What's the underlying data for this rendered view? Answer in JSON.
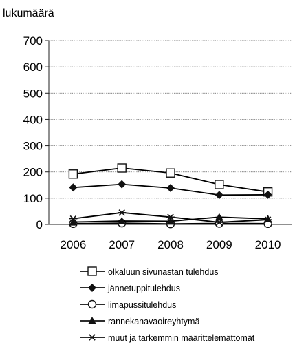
{
  "chart_data": {
    "type": "line",
    "ylabel": "lukumäärä",
    "xlabel": "",
    "title": "",
    "categories": [
      "2006",
      "2007",
      "2008",
      "2009",
      "2010"
    ],
    "ylim": [
      0,
      700
    ],
    "yticks": [
      0,
      100,
      200,
      300,
      400,
      500,
      600,
      700
    ],
    "grid": "horizontal-dotted",
    "legend_position": "bottom",
    "series": [
      {
        "name": "olkaluun sivunastan tulehdus",
        "marker": "square-open",
        "color": "#000000",
        "values": [
          192,
          215,
          196,
          152,
          124
        ]
      },
      {
        "name": "jännetuppitulehdus",
        "marker": "diamond-filled",
        "color": "#000000",
        "values": [
          141,
          153,
          139,
          112,
          113
        ]
      },
      {
        "name": "limapussitulehdus",
        "marker": "circle-open",
        "color": "#000000",
        "values": [
          3,
          5,
          2,
          4,
          3
        ]
      },
      {
        "name": "rannekanavaoireyhtymä",
        "marker": "triangle-filled",
        "color": "#000000",
        "values": [
          9,
          13,
          12,
          28,
          21
        ]
      },
      {
        "name": "muut ja tarkemmin määrittelemättömät",
        "marker": "asterisk",
        "color": "#000000",
        "values": [
          22,
          45,
          28,
          8,
          18
        ]
      }
    ]
  }
}
